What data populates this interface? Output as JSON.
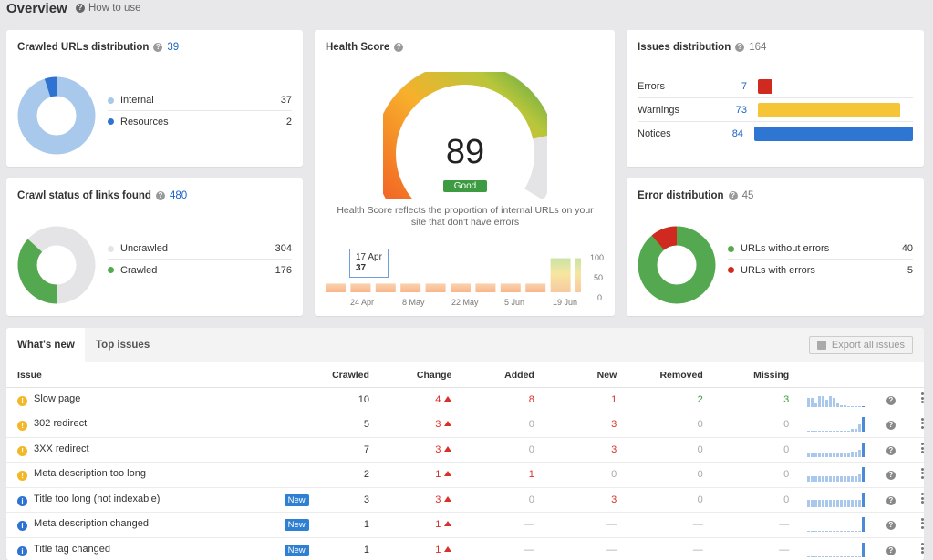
{
  "header": {
    "title": "Overview",
    "how_to_use": "How to use"
  },
  "colors": {
    "internal": "#a8c8ec",
    "resources": "#2f73d2",
    "uncrawled": "#e4e4e6",
    "crawled": "#54a84f",
    "errors_bar": "#d0291f",
    "warnings_bar": "#f5c437",
    "notices_bar": "#2f76d2",
    "ok": "#54a84f",
    "err": "#d0291f"
  },
  "crawled_urls": {
    "title": "Crawled URLs distribution",
    "count": "39",
    "items": [
      {
        "label": "Internal",
        "value": "37"
      },
      {
        "label": "Resources",
        "value": "2"
      }
    ]
  },
  "crawl_status": {
    "title": "Crawl status of links found",
    "count": "480",
    "items": [
      {
        "label": "Uncrawled",
        "value": "304"
      },
      {
        "label": "Crawled",
        "value": "176"
      }
    ]
  },
  "health": {
    "title": "Health Score",
    "score": "89",
    "score_value": 89,
    "badge": "Good",
    "description": "Health Score reflects the proportion of internal URLs on your site that don't have errors",
    "tooltip": {
      "date": "17 Apr",
      "value": "37"
    },
    "x_labels": [
      "24 Apr",
      "8 May",
      "22 May",
      "5 Jun",
      "19 Jun"
    ],
    "y_labels": [
      "100",
      "50",
      "0"
    ],
    "bars": [
      20,
      20,
      20,
      20,
      20,
      20,
      20,
      20,
      20,
      78,
      78,
      78
    ]
  },
  "issues": {
    "title": "Issues distribution",
    "count": "164",
    "items": [
      {
        "label": "Errors",
        "value": "7",
        "num": 7
      },
      {
        "label": "Warnings",
        "value": "73",
        "num": 73
      },
      {
        "label": "Notices",
        "value": "84",
        "num": 84
      }
    ]
  },
  "error_dist": {
    "title": "Error distribution",
    "count": "45",
    "items": [
      {
        "label": "URLs without errors",
        "value": "40"
      },
      {
        "label": "URLs with errors",
        "value": "5"
      }
    ]
  },
  "tabs": {
    "whats_new": "What's new",
    "top_issues": "Top issues",
    "export": "Export all issues"
  },
  "table": {
    "headers": {
      "issue": "Issue",
      "crawled": "Crawled",
      "change": "Change",
      "added": "Added",
      "new": "New",
      "removed": "Removed",
      "missing": "Missing"
    },
    "rows": [
      {
        "type": "warning",
        "issue": "Slow page",
        "badge": "",
        "crawled": "10",
        "change": "4",
        "added": "8",
        "new": "1",
        "removed": "2",
        "missing": "3",
        "spark": [
          10,
          10,
          4,
          12,
          12,
          8,
          12,
          10,
          4,
          2,
          2,
          1,
          1,
          1,
          1,
          1
        ]
      },
      {
        "type": "warning",
        "issue": "302 redirect",
        "badge": "",
        "crawled": "5",
        "change": "3",
        "added": "0",
        "new": "3",
        "removed": "0",
        "missing": "0",
        "spark": [
          1,
          1,
          1,
          1,
          1,
          1,
          1,
          1,
          1,
          1,
          1,
          1,
          3,
          3,
          8,
          16
        ]
      },
      {
        "type": "warning",
        "issue": "3XX redirect",
        "badge": "",
        "crawled": "7",
        "change": "3",
        "added": "0",
        "new": "3",
        "removed": "0",
        "missing": "0",
        "spark": [
          4,
          4,
          4,
          4,
          4,
          4,
          4,
          4,
          4,
          4,
          4,
          4,
          6,
          6,
          8,
          16
        ]
      },
      {
        "type": "warning",
        "issue": "Meta description too long",
        "badge": "",
        "crawled": "2",
        "change": "1",
        "added": "1",
        "new": "0",
        "removed": "0",
        "missing": "0",
        "spark": [
          6,
          6,
          6,
          6,
          6,
          6,
          6,
          6,
          6,
          6,
          6,
          6,
          6,
          6,
          8,
          16
        ]
      },
      {
        "type": "info",
        "issue": "Title too long (not indexable)",
        "badge": "New",
        "crawled": "3",
        "change": "3",
        "added": "0",
        "new": "3",
        "removed": "0",
        "missing": "0",
        "spark": [
          8,
          8,
          8,
          8,
          8,
          8,
          8,
          8,
          8,
          8,
          8,
          8,
          8,
          8,
          8,
          16
        ]
      },
      {
        "type": "info",
        "issue": "Meta description changed",
        "badge": "New",
        "crawled": "1",
        "change": "1",
        "added": "—",
        "new": "—",
        "removed": "—",
        "missing": "—",
        "spark": [
          0,
          0,
          0,
          0,
          0,
          0,
          0,
          0,
          0,
          0,
          0,
          0,
          0,
          0,
          0,
          16
        ]
      },
      {
        "type": "info",
        "issue": "Title tag changed",
        "badge": "New",
        "crawled": "1",
        "change": "1",
        "added": "—",
        "new": "—",
        "removed": "—",
        "missing": "—",
        "spark": [
          0,
          0,
          0,
          0,
          0,
          0,
          0,
          0,
          0,
          0,
          0,
          0,
          0,
          0,
          0,
          16
        ]
      }
    ]
  }
}
